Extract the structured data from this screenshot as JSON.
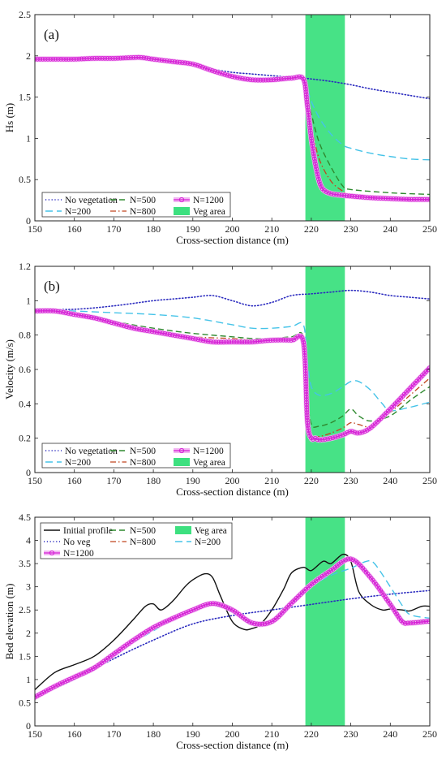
{
  "colors": {
    "veg_fill": "#3de07f",
    "no_veg": "#2b2bbf",
    "n200": "#45c3e8",
    "n500": "#2f8a2f",
    "n800": "#c0441d",
    "n1200": "#d61fd6",
    "n1200_glow": "#f2b6f2",
    "initial": "#111111"
  },
  "chart_data": [
    {
      "type": "line",
      "panel": "(a)",
      "xlabel": "Cross-section distance (m)",
      "ylabel": "Hs (m)",
      "xlim": [
        150,
        250
      ],
      "ylim": [
        0,
        2.5
      ],
      "xticks": [
        "150",
        "160",
        "170",
        "180",
        "190",
        "200",
        "210",
        "220",
        "230",
        "240",
        "250"
      ],
      "yticks": [
        "0",
        "0.5",
        "1",
        "1.5",
        "2",
        "2.5"
      ],
      "veg_area": [
        218.5,
        228.5
      ],
      "legend": {
        "placement": "bottom-left",
        "entries": [
          "No vegetation",
          "N=500",
          "N=1200",
          "N=200",
          "N=800",
          "Veg area"
        ]
      },
      "series": [
        {
          "name": "No vegetation",
          "key": "no_veg",
          "style": "dotted",
          "x": [
            150,
            160,
            170,
            177,
            180,
            190,
            195,
            200,
            205,
            210,
            215,
            218,
            220,
            225,
            230,
            235,
            240,
            245,
            250
          ],
          "y": [
            1.96,
            1.96,
            1.97,
            1.98,
            1.96,
            1.9,
            1.84,
            1.8,
            1.78,
            1.76,
            1.74,
            1.73,
            1.72,
            1.69,
            1.65,
            1.6,
            1.56,
            1.52,
            1.48
          ]
        },
        {
          "name": "N=200",
          "key": "n200",
          "style": "dashed",
          "x": [
            150,
            160,
            170,
            177,
            180,
            190,
            195,
            200,
            205,
            210,
            215,
            218,
            219,
            220,
            222,
            225,
            228,
            230,
            235,
            240,
            245,
            250
          ],
          "y": [
            1.96,
            1.96,
            1.97,
            1.98,
            1.96,
            1.9,
            1.82,
            1.75,
            1.71,
            1.71,
            1.73,
            1.72,
            1.6,
            1.45,
            1.25,
            1.05,
            0.92,
            0.88,
            0.82,
            0.78,
            0.75,
            0.74
          ]
        },
        {
          "name": "N=500",
          "key": "n500",
          "style": "dashed",
          "x": [
            150,
            160,
            170,
            177,
            180,
            190,
            195,
            200,
            205,
            210,
            215,
            218,
            219,
            220,
            222,
            225,
            228,
            230,
            240,
            250
          ],
          "y": [
            1.96,
            1.96,
            1.97,
            1.98,
            1.96,
            1.9,
            1.82,
            1.75,
            1.71,
            1.71,
            1.73,
            1.72,
            1.55,
            1.3,
            0.95,
            0.65,
            0.42,
            0.38,
            0.34,
            0.32
          ]
        },
        {
          "name": "N=800",
          "key": "n800",
          "style": "dashdot",
          "x": [
            150,
            160,
            170,
            177,
            180,
            190,
            195,
            200,
            205,
            210,
            215,
            218,
            219,
            220,
            222,
            225,
            228,
            230,
            240,
            250
          ],
          "y": [
            1.96,
            1.96,
            1.97,
            1.98,
            1.96,
            1.9,
            1.82,
            1.75,
            1.71,
            1.71,
            1.73,
            1.72,
            1.5,
            1.15,
            0.75,
            0.48,
            0.36,
            0.32,
            0.29,
            0.28
          ]
        },
        {
          "name": "N=1200",
          "key": "n1200",
          "style": "circles",
          "x": [
            150,
            155,
            160,
            165,
            170,
            175,
            177,
            180,
            185,
            190,
            195,
            200,
            205,
            210,
            215,
            218,
            219,
            220,
            221,
            222,
            223,
            225,
            228,
            230,
            235,
            240,
            245,
            250
          ],
          "y": [
            1.96,
            1.96,
            1.96,
            1.97,
            1.97,
            1.98,
            1.98,
            1.96,
            1.93,
            1.9,
            1.82,
            1.75,
            1.71,
            1.71,
            1.73,
            1.72,
            1.4,
            1.0,
            0.7,
            0.48,
            0.38,
            0.33,
            0.31,
            0.3,
            0.28,
            0.27,
            0.26,
            0.26
          ]
        }
      ]
    },
    {
      "type": "line",
      "panel": "(b)",
      "xlabel": "Cross-section distance (m)",
      "ylabel": "Velocity (m/s)",
      "xlim": [
        150,
        250
      ],
      "ylim": [
        0,
        1.2
      ],
      "xticks": [
        "150",
        "160",
        "170",
        "180",
        "190",
        "200",
        "210",
        "220",
        "230",
        "240",
        "250"
      ],
      "yticks": [
        "0",
        "0.2",
        "0.4",
        "0.6",
        "0.8",
        "1",
        "1.2"
      ],
      "veg_area": [
        218.5,
        228.5
      ],
      "legend": {
        "placement": "bottom-left",
        "entries": [
          "No vegetation",
          "N=500",
          "N=1200",
          "N=200",
          "N=800",
          "Veg area"
        ]
      },
      "series": [
        {
          "name": "No vegetation",
          "key": "no_veg",
          "style": "dotted",
          "x": [
            150,
            160,
            170,
            180,
            185,
            190,
            195,
            200,
            205,
            210,
            215,
            220,
            225,
            230,
            235,
            240,
            245,
            250
          ],
          "y": [
            0.95,
            0.95,
            0.97,
            1.0,
            1.01,
            1.02,
            1.03,
            1.0,
            0.97,
            0.99,
            1.03,
            1.04,
            1.05,
            1.06,
            1.05,
            1.03,
            1.02,
            1.01
          ]
        },
        {
          "name": "N=200",
          "key": "n200",
          "style": "dashed",
          "x": [
            150,
            160,
            170,
            180,
            190,
            200,
            205,
            210,
            215,
            218,
            219,
            220,
            222,
            225,
            228,
            230,
            232,
            235,
            238,
            240,
            245,
            250
          ],
          "y": [
            0.95,
            0.94,
            0.93,
            0.92,
            0.9,
            0.86,
            0.84,
            0.84,
            0.85,
            0.86,
            0.65,
            0.5,
            0.45,
            0.46,
            0.5,
            0.53,
            0.53,
            0.48,
            0.4,
            0.36,
            0.38,
            0.41
          ]
        },
        {
          "name": "N=500",
          "key": "n500",
          "style": "dashed",
          "x": [
            150,
            160,
            170,
            180,
            190,
            200,
            205,
            210,
            215,
            218,
            219,
            220,
            222,
            225,
            228,
            230,
            232,
            235,
            240,
            245,
            250
          ],
          "y": [
            0.94,
            0.93,
            0.88,
            0.84,
            0.81,
            0.79,
            0.78,
            0.78,
            0.79,
            0.79,
            0.45,
            0.28,
            0.27,
            0.29,
            0.33,
            0.37,
            0.33,
            0.3,
            0.33,
            0.42,
            0.5
          ]
        },
        {
          "name": "N=800",
          "key": "n800",
          "style": "dashdot",
          "x": [
            150,
            160,
            170,
            180,
            190,
            200,
            205,
            210,
            215,
            218,
            219,
            220,
            222,
            225,
            228,
            230,
            232,
            235,
            240,
            245,
            250
          ],
          "y": [
            0.94,
            0.93,
            0.87,
            0.82,
            0.79,
            0.78,
            0.77,
            0.77,
            0.78,
            0.78,
            0.4,
            0.22,
            0.21,
            0.23,
            0.26,
            0.29,
            0.28,
            0.27,
            0.35,
            0.45,
            0.55
          ]
        },
        {
          "name": "N=1200",
          "key": "n1200",
          "style": "circles",
          "x": [
            150,
            155,
            160,
            165,
            170,
            175,
            180,
            185,
            190,
            195,
            200,
            205,
            210,
            215,
            218,
            219,
            220,
            221,
            222,
            225,
            228,
            230,
            232,
            235,
            240,
            245,
            250
          ],
          "y": [
            0.94,
            0.94,
            0.92,
            0.9,
            0.87,
            0.84,
            0.82,
            0.8,
            0.78,
            0.76,
            0.76,
            0.76,
            0.77,
            0.77,
            0.76,
            0.3,
            0.2,
            0.2,
            0.19,
            0.2,
            0.22,
            0.24,
            0.23,
            0.26,
            0.37,
            0.49,
            0.61
          ]
        }
      ]
    },
    {
      "type": "line",
      "panel": "(c)",
      "xlabel": "Cross-section distance (m)",
      "ylabel": "Bed elevation (m)",
      "xlim": [
        150,
        250
      ],
      "ylim": [
        0,
        4.5
      ],
      "xticks": [
        "150",
        "160",
        "170",
        "180",
        "190",
        "200",
        "210",
        "220",
        "230",
        "240",
        "250"
      ],
      "yticks": [
        "0",
        "0.5",
        "1",
        "1.5",
        "2",
        "2.5",
        "3",
        "3.5",
        "4",
        "4.5"
      ],
      "veg_area": [
        218.5,
        228.5
      ],
      "legend": {
        "placement": "top-left",
        "entries": [
          "Initial profile",
          "N=500",
          "Veg area",
          "No veg",
          "N=800",
          "N=200",
          "N=1200"
        ]
      },
      "series": [
        {
          "name": "Initial profile",
          "key": "initial",
          "style": "solid",
          "x": [
            150,
            155,
            160,
            165,
            170,
            175,
            178,
            180,
            182,
            185,
            188,
            190,
            193,
            195,
            197,
            200,
            203,
            205,
            207,
            210,
            213,
            215,
            218,
            220,
            223,
            225,
            228,
            230,
            232,
            235,
            238,
            240,
            243,
            245,
            248,
            250
          ],
          "y": [
            0.78,
            1.15,
            1.32,
            1.5,
            1.85,
            2.3,
            2.58,
            2.63,
            2.5,
            2.7,
            3.0,
            3.15,
            3.28,
            3.2,
            2.8,
            2.25,
            2.08,
            2.1,
            2.18,
            2.5,
            2.95,
            3.3,
            3.42,
            3.35,
            3.55,
            3.5,
            3.7,
            3.55,
            2.9,
            2.62,
            2.5,
            2.52,
            2.5,
            2.48,
            2.58,
            2.58
          ]
        },
        {
          "name": "No veg",
          "key": "no_veg",
          "style": "dotted",
          "x": [
            150,
            160,
            170,
            180,
            190,
            200,
            210,
            220,
            230,
            240,
            250
          ],
          "y": [
            0.62,
            1.0,
            1.45,
            1.85,
            2.2,
            2.38,
            2.5,
            2.62,
            2.74,
            2.84,
            2.92
          ]
        },
        {
          "name": "N=200",
          "key": "n200",
          "style": "dashed",
          "x": [
            150,
            160,
            170,
            175,
            180,
            185,
            190,
            195,
            200,
            205,
            210,
            215,
            220,
            225,
            230,
            234,
            236,
            240,
            243,
            245,
            250
          ],
          "y": [
            0.62,
            1.05,
            1.5,
            1.8,
            2.05,
            2.3,
            2.5,
            2.6,
            2.45,
            2.2,
            2.25,
            2.6,
            3.0,
            3.25,
            3.4,
            3.55,
            3.5,
            3.0,
            2.6,
            2.4,
            2.32
          ]
        },
        {
          "name": "N=500",
          "key": "n500",
          "style": "dashed",
          "x": [
            150,
            160,
            170,
            175,
            180,
            185,
            190,
            195,
            200,
            205,
            210,
            215,
            220,
            225,
            230,
            235,
            240,
            243,
            245,
            250
          ],
          "y": [
            0.62,
            1.05,
            1.55,
            1.85,
            2.12,
            2.32,
            2.5,
            2.62,
            2.48,
            2.22,
            2.28,
            2.65,
            3.05,
            3.3,
            3.6,
            3.25,
            2.65,
            2.3,
            2.25,
            2.28
          ]
        },
        {
          "name": "N=800",
          "key": "n800",
          "style": "dashdot",
          "x": [
            150,
            160,
            170,
            175,
            180,
            185,
            190,
            195,
            200,
            205,
            210,
            215,
            220,
            225,
            230,
            235,
            240,
            243,
            245,
            250
          ],
          "y": [
            0.62,
            1.05,
            1.55,
            1.85,
            2.12,
            2.32,
            2.5,
            2.64,
            2.48,
            2.22,
            2.28,
            2.68,
            3.08,
            3.35,
            3.62,
            3.2,
            2.6,
            2.25,
            2.22,
            2.26
          ]
        },
        {
          "name": "N=1200",
          "key": "n1200",
          "style": "circles",
          "x": [
            150,
            155,
            160,
            165,
            170,
            175,
            180,
            185,
            190,
            195,
            200,
            205,
            210,
            215,
            220,
            225,
            230,
            235,
            240,
            243,
            245,
            250
          ],
          "y": [
            0.62,
            0.85,
            1.05,
            1.25,
            1.55,
            1.85,
            2.12,
            2.32,
            2.5,
            2.64,
            2.5,
            2.22,
            2.25,
            2.65,
            3.05,
            3.35,
            3.6,
            3.2,
            2.62,
            2.25,
            2.22,
            2.26
          ]
        }
      ]
    }
  ]
}
